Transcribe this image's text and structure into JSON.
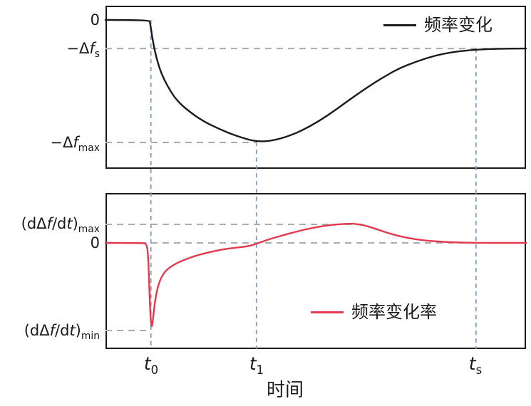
{
  "colors": {
    "curve_top": "#1a1a1a",
    "curve_bottom": "#e23b4e",
    "marker_line": "#7d9bd0",
    "ref_line": "#ababab",
    "frame": "#1a1a1a",
    "text": "#1a1a1a"
  },
  "labels": {
    "top": {
      "zero": "0",
      "dfs_pre": "−Δ",
      "dfs_var": "f",
      "dfs_sub": "s",
      "dfmax_pre": "−Δ",
      "dfmax_var": "f",
      "dfmax_sub": "max"
    },
    "bottom": {
      "zero": "0",
      "rate_open": "(dΔ",
      "rate_var_f": "f",
      "rate_mid": "/d",
      "rate_var_t": "t",
      "rate_close": ")",
      "max_sub": "max",
      "min_sub": "min"
    },
    "x": {
      "t_var": "t",
      "t0_sub": "0",
      "t1_sub": "1",
      "ts_sub": "s",
      "title": "时间"
    }
  },
  "chart_data": {
    "type": "line",
    "title": "",
    "xlabel": "时间",
    "x_unit": "normalized time (0-1 across plot width)",
    "x_ticks": [
      {
        "label": "t0",
        "x": 0.108
      },
      {
        "label": "t1",
        "x": 0.359
      },
      {
        "label": "ts",
        "x": 0.881
      }
    ],
    "time_markers": [
      {
        "label": "t0",
        "x": 0.108,
        "top_start_value": 0
      },
      {
        "label": "t1",
        "x": 0.359,
        "top_start_value": -0.995
      },
      {
        "label": "ts",
        "x": 0.881,
        "top_start_value": -0.233
      }
    ],
    "panels": [
      {
        "name": "frequency-deviation",
        "legend": "频率变化",
        "color": "#1a1a1a",
        "y_unit": "relative to Δf_max (0 to −1)",
        "y_tick_labels": [
          "0",
          "−Δf_s",
          "−Δf_max"
        ],
        "y_tick_values": [
          0,
          -0.233,
          -1
        ],
        "ref_lines": [
          {
            "label": "−Δf_s",
            "value": -0.233,
            "x0": 0,
            "x1": 1
          },
          {
            "label": "−Δf_max",
            "value": -1,
            "x0": 0,
            "x1": 0.359
          }
        ],
        "series": {
          "x": [
            0,
            0.103,
            0.106,
            0.109,
            0.113,
            0.121,
            0.133,
            0.149,
            0.17,
            0.198,
            0.232,
            0.272,
            0.315,
            0.359,
            0.4,
            0.443,
            0.486,
            0.529,
            0.571,
            0.614,
            0.656,
            0.698,
            0.741,
            0.783,
            0.825,
            0.868,
            0.91,
            0.955,
            1.0
          ],
          "y": [
            0,
            0,
            -0.02,
            -0.09,
            -0.18,
            -0.31,
            -0.44,
            -0.55,
            -0.66,
            -0.745,
            -0.826,
            -0.893,
            -0.952,
            -0.995,
            -0.985,
            -0.94,
            -0.87,
            -0.779,
            -0.674,
            -0.57,
            -0.477,
            -0.395,
            -0.337,
            -0.291,
            -0.262,
            -0.246,
            -0.238,
            -0.234,
            -0.233
          ]
        }
      },
      {
        "name": "frequency-rate-of-change",
        "legend": "频率变化率",
        "color": "#e23b4e",
        "y_unit": "relative to |dΔf/dt|_min (−1 to +0.22)",
        "y_tick_labels": [
          "(dΔf/dt)_max",
          "0",
          "(dΔf/dt)_min"
        ],
        "y_tick_values": [
          0.211,
          0,
          -1
        ],
        "ref_lines": [
          {
            "label": "(dΔf/dt)_max",
            "value": 0.211,
            "x0": 0,
            "x1": 0.62
          },
          {
            "label": "0",
            "value": 0,
            "x0": 0,
            "x1": 1
          },
          {
            "label": "(dΔf/dt)_min",
            "value": -1,
            "x0": 0,
            "x1": 0.108
          }
        ],
        "series": {
          "x": [
            0,
            0.09,
            0.097,
            0.101,
            0.104,
            0.107,
            0.11,
            0.114,
            0.119,
            0.127,
            0.14,
            0.158,
            0.183,
            0.215,
            0.252,
            0.29,
            0.322,
            0.342,
            0.359,
            0.385,
            0.42,
            0.455,
            0.49,
            0.525,
            0.555,
            0.58,
            0.6,
            0.62,
            0.643,
            0.67,
            0.7,
            0.735,
            0.77,
            0.808,
            0.85,
            0.9,
            1.0
          ],
          "y": [
            0,
            0,
            -0.01,
            -0.1,
            -0.48,
            -0.85,
            -0.99,
            -0.82,
            -0.62,
            -0.45,
            -0.33,
            -0.26,
            -0.2,
            -0.145,
            -0.1,
            -0.065,
            -0.05,
            -0.035,
            -0.01,
            0.035,
            0.085,
            0.13,
            0.17,
            0.198,
            0.213,
            0.22,
            0.215,
            0.195,
            0.16,
            0.115,
            0.075,
            0.042,
            0.022,
            0.01,
            0.003,
            0,
            0
          ]
        }
      }
    ]
  }
}
